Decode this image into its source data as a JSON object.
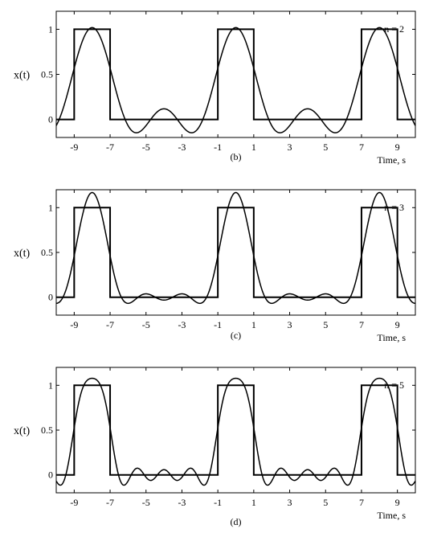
{
  "chart_data": [
    {
      "type": "line",
      "caption": "(b)",
      "annotation": "n = 2",
      "n": 2,
      "xlabel": "Time, s",
      "ylabel": "x(t)",
      "xlim": [
        -10,
        10
      ],
      "ylim": [
        -0.2,
        1.2
      ],
      "xticks": [
        -9,
        -7,
        -5,
        -3,
        -1,
        1,
        3,
        5,
        7,
        9
      ],
      "yticks": [
        0,
        0.5,
        1
      ],
      "ytick_labels": [
        "0",
        "0.5",
        "1"
      ],
      "grid": false,
      "series": [
        {
          "role": "square-wave",
          "x": [
            -10,
            -9,
            -9,
            -7,
            -7,
            -1,
            -1,
            1,
            1,
            7,
            7,
            9,
            9,
            10
          ],
          "y": [
            0,
            0,
            1,
            1,
            0,
            0,
            1,
            1,
            0,
            0,
            1,
            1,
            0,
            0
          ]
        },
        {
          "role": "fourier-approximation",
          "period": 8,
          "pulse_width": 2
        }
      ]
    },
    {
      "type": "line",
      "caption": "(c)",
      "annotation": "n = 3",
      "n": 3,
      "xlabel": "Time, s",
      "ylabel": "x(t)",
      "xlim": [
        -10,
        10
      ],
      "ylim": [
        -0.2,
        1.2
      ],
      "xticks": [
        -9,
        -7,
        -5,
        -3,
        -1,
        1,
        3,
        5,
        7,
        9
      ],
      "yticks": [
        0,
        0.5,
        1
      ],
      "ytick_labels": [
        "0",
        "0.5",
        "1"
      ],
      "grid": false,
      "series": [
        {
          "role": "square-wave",
          "x": [
            -10,
            -9,
            -9,
            -7,
            -7,
            -1,
            -1,
            1,
            1,
            7,
            7,
            9,
            9,
            10
          ],
          "y": [
            0,
            0,
            1,
            1,
            0,
            0,
            1,
            1,
            0,
            0,
            1,
            1,
            0,
            0
          ]
        },
        {
          "role": "fourier-approximation",
          "period": 8,
          "pulse_width": 2
        }
      ]
    },
    {
      "type": "line",
      "caption": "(d)",
      "annotation": "n = 5",
      "n": 5,
      "xlabel": "Time, s",
      "ylabel": "x(t)",
      "xlim": [
        -10,
        10
      ],
      "ylim": [
        -0.2,
        1.2
      ],
      "xticks": [
        -9,
        -7,
        -5,
        -3,
        -1,
        1,
        3,
        5,
        7,
        9
      ],
      "yticks": [
        0,
        0.5,
        1
      ],
      "ytick_labels": [
        "0",
        "0.5",
        "1"
      ],
      "grid": false,
      "series": [
        {
          "role": "square-wave",
          "x": [
            -10,
            -9,
            -9,
            -7,
            -7,
            -1,
            -1,
            1,
            1,
            7,
            7,
            9,
            9,
            10
          ],
          "y": [
            0,
            0,
            1,
            1,
            0,
            0,
            1,
            1,
            0,
            0,
            1,
            1,
            0,
            0
          ]
        },
        {
          "role": "fourier-approximation",
          "period": 8,
          "pulse_width": 2
        }
      ]
    }
  ]
}
